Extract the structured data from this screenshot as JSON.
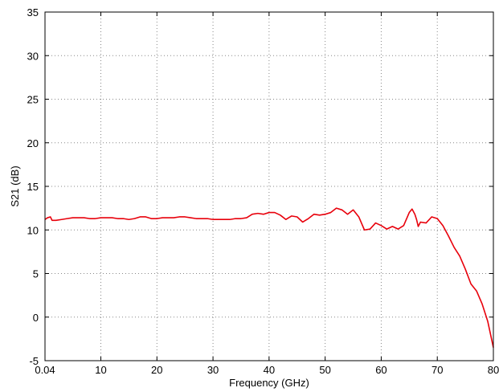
{
  "chart_data": {
    "type": "line",
    "title": "",
    "xlabel": "Frequency (GHz)",
    "ylabel": "S21 (dB)",
    "xlim": [
      0.04,
      80
    ],
    "ylim": [
      -5,
      35
    ],
    "x_ticks": [
      0.04,
      10,
      20,
      30,
      40,
      50,
      60,
      70,
      80
    ],
    "x_tick_labels": [
      "0.04",
      "10",
      "20",
      "30",
      "40",
      "50",
      "60",
      "70",
      "80"
    ],
    "y_ticks": [
      -5,
      0,
      5,
      10,
      15,
      20,
      25,
      30,
      35
    ],
    "y_tick_labels": [
      "-5",
      "0",
      "5",
      "10",
      "15",
      "20",
      "25",
      "30",
      "35"
    ],
    "grid": true,
    "grid_style": "dotted",
    "series": [
      {
        "color": "#e8000b",
        "x": [
          0.04,
          0.5,
          1,
          1.3,
          2,
          3,
          4,
          5,
          6,
          7,
          8,
          9,
          10,
          11,
          12,
          13,
          14,
          15,
          16,
          17,
          18,
          19,
          20,
          21,
          22,
          23,
          24,
          25,
          26,
          27,
          28,
          29,
          30,
          31,
          32,
          33,
          34,
          35,
          36,
          37,
          38,
          39,
          40,
          41,
          42,
          43,
          44,
          45,
          46,
          47,
          48,
          49,
          50,
          51,
          52,
          53,
          54,
          55,
          56,
          57,
          58,
          59,
          60,
          61,
          62,
          63,
          64,
          65,
          65.5,
          66,
          66.3,
          66.6,
          67,
          68,
          69,
          70,
          71,
          72,
          73,
          74,
          75,
          76,
          77,
          78,
          79,
          80
        ],
        "y": [
          11.2,
          11.4,
          11.5,
          11.1,
          11.1,
          11.2,
          11.3,
          11.4,
          11.4,
          11.4,
          11.3,
          11.3,
          11.4,
          11.4,
          11.4,
          11.3,
          11.3,
          11.2,
          11.3,
          11.5,
          11.5,
          11.3,
          11.3,
          11.4,
          11.4,
          11.4,
          11.5,
          11.5,
          11.4,
          11.3,
          11.3,
          11.3,
          11.2,
          11.2,
          11.2,
          11.2,
          11.3,
          11.3,
          11.4,
          11.8,
          11.9,
          11.8,
          12.0,
          12.0,
          11.7,
          11.2,
          11.6,
          11.5,
          10.9,
          11.3,
          11.8,
          11.7,
          11.8,
          12.0,
          12.5,
          12.3,
          11.8,
          12.3,
          11.5,
          10.0,
          10.1,
          10.8,
          10.5,
          10.1,
          10.4,
          10.1,
          10.5,
          12.0,
          12.4,
          11.8,
          11.2,
          10.4,
          10.9,
          10.8,
          11.5,
          11.3,
          10.5,
          9.3,
          8.0,
          7.0,
          5.5,
          3.8,
          3.0,
          1.5,
          -0.5,
          -3.5
        ]
      }
    ]
  }
}
